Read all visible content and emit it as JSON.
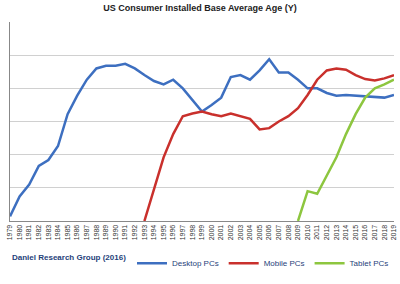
{
  "chart_data": {
    "type": "line",
    "title": "US Consumer Installed Base Average Age (Y)",
    "annotations": [
      "Daniel Research Group (2016)"
    ],
    "x": [
      1979,
      1980,
      1981,
      1982,
      1983,
      1984,
      1985,
      1986,
      1987,
      1988,
      1989,
      1990,
      1991,
      1992,
      1993,
      1994,
      1995,
      1996,
      1997,
      1998,
      1999,
      2000,
      2001,
      2002,
      2003,
      2004,
      2005,
      2006,
      2007,
      2008,
      2009,
      2010,
      2011,
      2012,
      2013,
      2014,
      2015,
      2016,
      2017,
      2018,
      2019
    ],
    "series": [
      {
        "name": "Desktop PCs",
        "color": "#3d6fc0",
        "values": [
          0.07,
          0.37,
          0.55,
          0.83,
          0.92,
          1.13,
          1.61,
          1.89,
          2.13,
          2.3,
          2.34,
          2.34,
          2.37,
          2.3,
          2.2,
          2.11,
          2.06,
          2.13,
          2.0,
          1.82,
          1.65,
          1.75,
          1.86,
          2.17,
          2.2,
          2.13,
          2.27,
          2.44,
          2.24,
          2.24,
          2.13,
          2.0,
          2.0,
          1.93,
          1.89,
          1.9,
          1.89,
          1.87,
          1.86,
          1.86,
          1.9
        ]
      },
      {
        "name": "Mobile PCs",
        "color": "#c9302c",
        "values": [
          null,
          null,
          null,
          null,
          null,
          null,
          null,
          null,
          null,
          null,
          null,
          null,
          null,
          null,
          0,
          0.48,
          0.96,
          1.31,
          1.58,
          1.62,
          1.65,
          1.61,
          1.58,
          1.62,
          1.58,
          1.54,
          1.38,
          1.4,
          1.5,
          1.58,
          1.7,
          1.9,
          2.13,
          2.27,
          2.3,
          2.28,
          2.2,
          2.14,
          2.12,
          2.15,
          2.2
        ]
      },
      {
        "name": "Tablet PCs",
        "color": "#8dc63f",
        "values": [
          null,
          null,
          null,
          null,
          null,
          null,
          null,
          null,
          null,
          null,
          null,
          null,
          null,
          null,
          null,
          null,
          null,
          null,
          null,
          null,
          null,
          null,
          null,
          null,
          null,
          null,
          null,
          null,
          null,
          null,
          0,
          0.45,
          0.41,
          0.69,
          0.96,
          1.31,
          1.61,
          1.86,
          2.0,
          2.06,
          2.13
        ]
      }
    ],
    "xlim": [
      1979,
      2019
    ],
    "xticks": [
      1979,
      1980,
      1981,
      1982,
      1983,
      1984,
      1985,
      1986,
      1987,
      1988,
      1989,
      1990,
      1991,
      1992,
      1993,
      1994,
      1995,
      1996,
      1997,
      1998,
      1999,
      2000,
      2001,
      2002,
      2003,
      2004,
      2005,
      2006,
      2007,
      2008,
      2009,
      2010,
      2011,
      2012,
      2013,
      2014,
      2015,
      2016,
      2017,
      2018,
      2019
    ],
    "ylim": [
      0,
      3
    ],
    "yticks": [
      0,
      0.5,
      1,
      1.5,
      2,
      2.5,
      3
    ],
    "grid": true,
    "legend": "bottom",
    "tick_labels": "x"
  }
}
